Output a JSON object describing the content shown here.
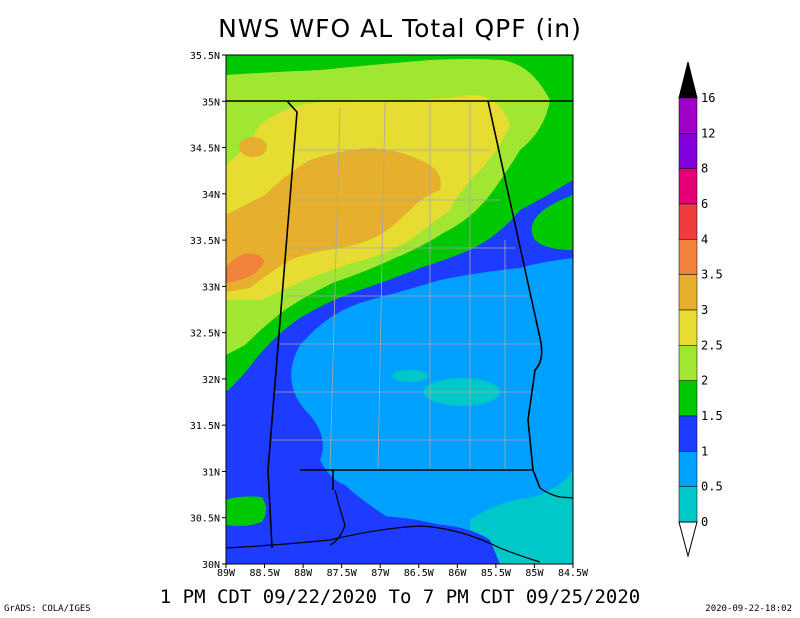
{
  "title": "NWS WFO AL Total QPF (in)",
  "subtitle": "1 PM CDT 09/22/2020 To 7 PM CDT 09/25/2020",
  "credit": "GrADS: COLA/IGES",
  "timestamp": "2020-09-22-18:02",
  "map": {
    "lat_labels": [
      "35.5N",
      "35N",
      "34.5N",
      "34N",
      "33.5N",
      "33N",
      "32.5N",
      "32N",
      "31.5N",
      "31N",
      "30.5N",
      "30N"
    ],
    "lon_labels": [
      "89W",
      "88.5W",
      "88W",
      "87.5W",
      "87W",
      "86.5W",
      "86W",
      "85.5W",
      "85W",
      "84.5W"
    ],
    "lat_range": [
      30,
      35.5
    ],
    "lon_range": [
      -89,
      -84.5
    ]
  },
  "legend": {
    "labels": [
      "16",
      "12",
      "8",
      "6",
      "4",
      "3.5",
      "3",
      "2.5",
      "2",
      "1.5",
      "1",
      "0.5",
      "0"
    ],
    "colors": [
      "#a000c8",
      "#8200dc",
      "#e60078",
      "#f03c3c",
      "#f0823c",
      "#e6af2d",
      "#e6dc32",
      "#a0e632",
      "#00c800",
      "#1e3cff",
      "#00a0ff",
      "#00c8c8"
    ],
    "top_arrow_color": "#000000",
    "bottom_arrow_color": "#ffffff"
  },
  "colors": {
    "teal": "#00c8c8",
    "light_blue": "#00a0ff",
    "blue": "#1e3cff",
    "green": "#00c800",
    "light_green": "#a0e632",
    "yellow": "#e6dc32",
    "tan": "#e6af2d",
    "orange": "#f0823c"
  }
}
